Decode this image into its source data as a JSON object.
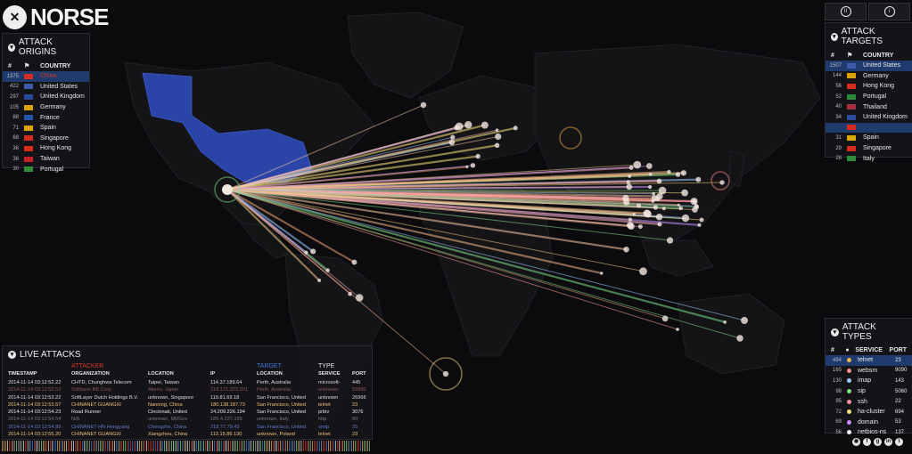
{
  "app": {
    "logo_text": "NORSE"
  },
  "colors": {
    "accent_red": "#d9362c",
    "accent_blue": "#3d7bd6",
    "highlight_row": "#1f3b6e",
    "land": "#151518",
    "usa_fill": "#2a44a8"
  },
  "attack_origins": {
    "title": "ATTACK ORIGINS",
    "col_num_icon": "hash-icon",
    "col_flag_icon": "flag-icon",
    "col_country": "COUNTRY",
    "rows": [
      {
        "n": "1375",
        "country": "China",
        "flag": "#d52b1e",
        "highlight": true
      },
      {
        "n": "422",
        "country": "United States",
        "flag": "#3c5aa8"
      },
      {
        "n": "297",
        "country": "United Kingdom",
        "flag": "#2b4a9c"
      },
      {
        "n": "105",
        "country": "Germany",
        "flag": "#d9a400"
      },
      {
        "n": "88",
        "country": "France",
        "flag": "#2456a8"
      },
      {
        "n": "71",
        "country": "Spain",
        "flag": "#d8a800"
      },
      {
        "n": "68",
        "country": "Singapore",
        "flag": "#d52b1e"
      },
      {
        "n": "36",
        "country": "Hong Kong",
        "flag": "#d52b1e"
      },
      {
        "n": "36",
        "country": "Taiwan",
        "flag": "#c8202a"
      },
      {
        "n": "30",
        "country": "Portugal",
        "flag": "#2e8b3a"
      }
    ]
  },
  "attack_targets": {
    "title": "ATTACK TARGETS",
    "col_country": "COUNTRY",
    "rows": [
      {
        "n": "1507",
        "country": "United States",
        "flag": "#3c5aa8",
        "highlight": true
      },
      {
        "n": "144",
        "country": "Germany",
        "flag": "#d9a400"
      },
      {
        "n": "56",
        "country": "Hong Kong",
        "flag": "#d52b1e"
      },
      {
        "n": "52",
        "country": "Portugal",
        "flag": "#2e8b3a"
      },
      {
        "n": "40",
        "country": "Thailand",
        "flag": "#a33040"
      },
      {
        "n": "34",
        "country": "United Kingdom",
        "flag": "#2b4a9c"
      },
      {
        "n": "",
        "country": "",
        "flag": "#d52b1e",
        "highlight": true
      },
      {
        "n": "31",
        "country": "Spain",
        "flag": "#d8a800"
      },
      {
        "n": "29",
        "country": "Singapore",
        "flag": "#d52b1e"
      },
      {
        "n": "28",
        "country": "Italy",
        "flag": "#2e8b3a"
      }
    ]
  },
  "attack_types": {
    "title": "ATTACK TYPES",
    "col_service": "SERVICE",
    "col_port": "PORT",
    "rows": [
      {
        "n": "494",
        "service": "telnet",
        "port": "23",
        "dot": "#f0b24a",
        "highlight": true
      },
      {
        "n": "165",
        "service": "websm",
        "port": "9090",
        "dot": "#f28f8f"
      },
      {
        "n": "130",
        "service": "imap",
        "port": "143",
        "dot": "#9ec7ff"
      },
      {
        "n": "98",
        "service": "sip",
        "port": "5060",
        "dot": "#7fe08a"
      },
      {
        "n": "95",
        "service": "ssh",
        "port": "22",
        "dot": "#ff8fa0"
      },
      {
        "n": "72",
        "service": "ha-cluster",
        "port": "694",
        "dot": "#f7e07a"
      },
      {
        "n": "69",
        "service": "domain",
        "port": "53",
        "dot": "#c58fff"
      },
      {
        "n": "56",
        "service": "netbios-ns",
        "port": "137",
        "dot": "#f5f5f5"
      }
    ]
  },
  "live_attacks": {
    "title": "LIVE ATTACKS",
    "attacker_label": "ATTACKER",
    "target_label": "TARGET",
    "type_label": "TYPE",
    "headers": [
      "TIMESTAMP",
      "ORGANIZATION",
      "LOCATION",
      "IP",
      "LOCATION",
      "SERVICE",
      "PORT"
    ],
    "rows": [
      [
        "2014-11-14  03:12:52.22",
        "CHTD, Chunghwa Telecom",
        "Taipei, Taiwan",
        "114.37.189.64",
        "Perth, Australia",
        "microsoft-",
        "445"
      ],
      [
        "2014-11-14  03:12:52.53",
        "Softbank BB Corp",
        "Akeno, Japan",
        "219.171.222.201",
        "Perth, Australia",
        "unknown",
        "59990"
      ],
      [
        "2014-11-14  03:12:53.22",
        "SoftLayer Dutch Holdings B.V.",
        "unknown, Singapore",
        "119.81.69.18",
        "San Francisco, United",
        "unknown",
        "26966"
      ],
      [
        "2014-11-14  03:12:53.57",
        "CHINANET GUANGXI",
        "Nanning, China",
        "180.138.187.73",
        "San Francisco, United",
        "telnet",
        "23"
      ],
      [
        "2014-11-14  03:12:54.23",
        "Road Runner",
        "Cincinnati, United",
        "24.209.226.194",
        "San Francisco, United",
        "prbiv",
        "3076"
      ],
      [
        "2014-11-14  03:12:54.54",
        "N/A",
        "unknown, Mil/Gov",
        "185.4.227.195",
        "unknown, Italy",
        "http",
        "80"
      ],
      [
        "2014-11-14  03:12:54.89",
        "CHINANET-HN Hengyang",
        "Chengzhe, China",
        "218.77.79.43",
        "San Francisco, United",
        "smtp",
        "25"
      ],
      [
        "2014-11-14  03:12:55.20",
        "CHINANET GUANGXI",
        "Xiangzhou, China",
        "113.15.86.130",
        "unknown, Poland",
        "telnet",
        "23"
      ]
    ],
    "row_colors": [
      "#dddddd",
      "#8a5a5a",
      "#dddddd",
      "#f0c27a",
      "#e8e8e8",
      "#7a7a7a",
      "#6a78c8",
      "#f0c27a"
    ]
  },
  "toolbar": {
    "pause_icon": "pause-icon",
    "info_icon": "info-icon"
  },
  "social": [
    "rss-icon",
    "facebook-icon",
    "google-plus-icon",
    "linkedin-icon",
    "twitter-icon"
  ]
}
